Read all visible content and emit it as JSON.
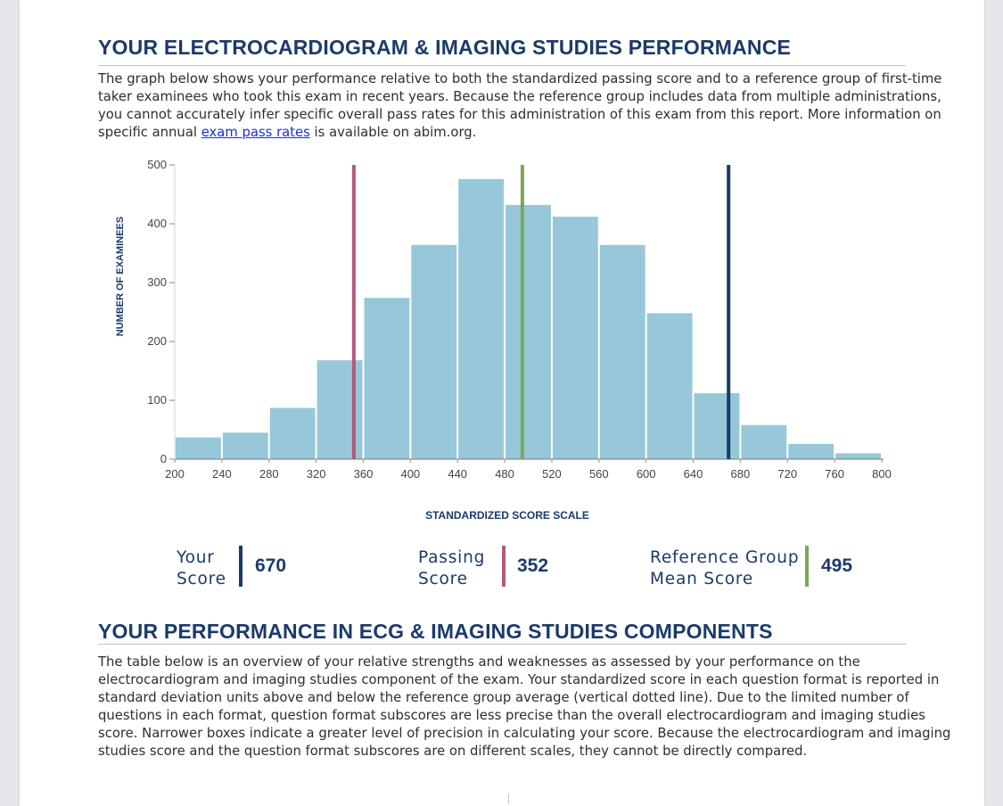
{
  "section1": {
    "title": "YOUR ELECTROCARDIOGRAM & IMAGING STUDIES PERFORMANCE",
    "intro_before_link": "The graph below shows your performance relative to both the standardized passing score and to a reference group of first-time taker examinees who took this exam in recent years. Because the reference group includes data from multiple administrations, you cannot accurately infer specific overall pass rates for this administration of this exam from this report. More information on specific annual ",
    "link_text": "exam pass rates",
    "intro_after_link": " is available on abim.org."
  },
  "legend": {
    "your_score": {
      "label_line1": "Your",
      "label_line2": "Score",
      "value": "670",
      "color": "#1b3a6b"
    },
    "passing_score": {
      "label_line1": "Passing",
      "label_line2": "Score",
      "value": "352",
      "color": "#b5587c"
    },
    "reference_mean": {
      "label_line1": "Reference Group",
      "label_line2": "Mean Score",
      "value": "495",
      "color": "#7aa657"
    }
  },
  "section2": {
    "title": "YOUR PERFORMANCE IN ECG & IMAGING STUDIES COMPONENTS",
    "body": "The table below is an overview of your relative strengths and weaknesses as assessed by your performance on the electrocardiogram and imaging studies component of the exam. Your standardized score in each question format is reported in standard deviation units above and below the reference group average (vertical dotted line). Due to the limited number of questions in each format, question format subscores are less precise than the overall electrocardiogram and imaging studies score. Narrower boxes indicate a greater level of precision in calculating your score. Because the electrocardiogram and imaging studies score and the question format subscores are on different scales, they cannot be directly compared."
  },
  "chart_data": {
    "type": "bar",
    "title": "",
    "xlabel": "STANDARDIZED SCORE SCALE",
    "ylabel": "NUMBER OF EXAMINEES",
    "xlim": [
      200,
      800
    ],
    "ylim": [
      0,
      500
    ],
    "xticks": [
      200,
      240,
      280,
      320,
      360,
      400,
      440,
      480,
      520,
      560,
      600,
      640,
      680,
      720,
      760,
      800
    ],
    "yticks": [
      0,
      100,
      200,
      300,
      400,
      500
    ],
    "bin_width": 40,
    "bins": [
      {
        "start": 200,
        "value": 37
      },
      {
        "start": 240,
        "value": 45
      },
      {
        "start": 280,
        "value": 87
      },
      {
        "start": 320,
        "value": 168
      },
      {
        "start": 360,
        "value": 274
      },
      {
        "start": 400,
        "value": 364
      },
      {
        "start": 440,
        "value": 476
      },
      {
        "start": 480,
        "value": 432
      },
      {
        "start": 520,
        "value": 412
      },
      {
        "start": 560,
        "value": 364
      },
      {
        "start": 600,
        "value": 248
      },
      {
        "start": 640,
        "value": 112
      },
      {
        "start": 680,
        "value": 58
      },
      {
        "start": 720,
        "value": 26
      },
      {
        "start": 760,
        "value": 10
      }
    ],
    "reference_lines": [
      {
        "name": "Passing Score",
        "x": 352,
        "color": "#b5587c"
      },
      {
        "name": "Reference Group Mean Score",
        "x": 495,
        "color": "#7aa657"
      },
      {
        "name": "Your Score",
        "x": 670,
        "color": "#1b3a6b"
      }
    ],
    "bar_color": "#96c8da",
    "grid": false
  }
}
